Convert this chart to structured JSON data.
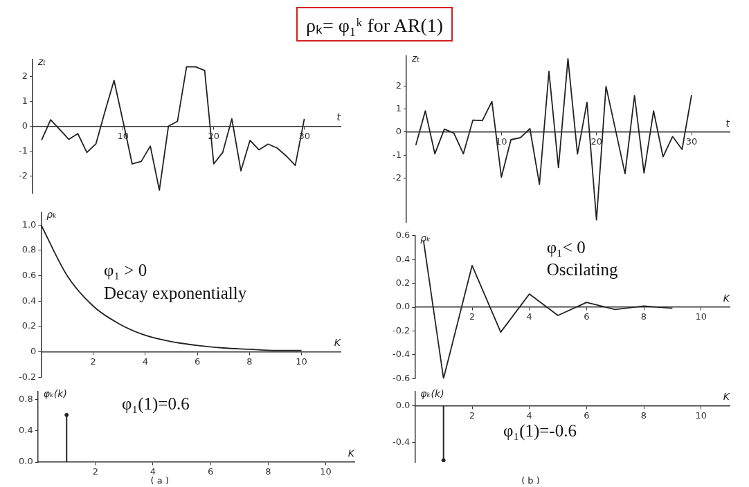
{
  "chart_data": [
    {
      "type": "other",
      "title": "ρₖ= φ₁ᵏ for AR(1)"
    },
    {
      "type": "line",
      "xlabel": "t",
      "ylabel": "zₜ",
      "marker": "none",
      "color": "#222222",
      "x": [
        1,
        2,
        3,
        4,
        5,
        6,
        7,
        8,
        9,
        10,
        11,
        12,
        13,
        14,
        15,
        16,
        17,
        18,
        19,
        20,
        21,
        22,
        23,
        24,
        25,
        26,
        27,
        28,
        29,
        30
      ],
      "values": [
        -0.56,
        0.26,
        -0.13,
        -0.53,
        -0.3,
        -1.06,
        -0.71,
        0.6,
        1.85,
        0.18,
        -1.52,
        -1.42,
        -0.8,
        -2.58,
        0.0,
        0.2,
        2.4,
        2.4,
        2.25,
        -1.52,
        -1.05,
        0.3,
        -1.8,
        -0.57,
        -0.95,
        -0.72,
        -0.88,
        -1.2,
        -1.58,
        0.3
      ],
      "xlim": [
        0,
        34
      ],
      "ylim": [
        -2.7,
        2.7
      ],
      "xticks": [
        10,
        20,
        30
      ],
      "yticks": [
        -2,
        -1,
        0,
        1,
        2
      ],
      "grid": false,
      "legend": false
    },
    {
      "type": "line",
      "xlabel": "t",
      "ylabel": "zₜ",
      "marker": "none",
      "color": "#222222",
      "x": [
        1,
        2,
        3,
        4,
        5,
        6,
        7,
        8,
        9,
        10,
        11,
        12,
        13,
        14,
        15,
        16,
        17,
        18,
        19,
        20,
        21,
        22,
        23,
        24,
        25,
        26,
        27,
        28,
        29,
        30
      ],
      "values": [
        -0.56,
        0.92,
        -0.94,
        0.13,
        -0.04,
        -0.94,
        0.52,
        0.5,
        1.33,
        -1.95,
        -0.33,
        -0.24,
        0.15,
        -2.26,
        2.63,
        -1.54,
        3.18,
        -0.95,
        1.29,
        -3.8,
        1.98,
        0.1,
        -1.8,
        1.58,
        -1.77,
        0.92,
        -1.07,
        -0.19,
        -0.75,
        1.61
      ],
      "xlim": [
        0,
        34
      ],
      "ylim": [
        -3.9,
        3.3
      ],
      "xticks": [
        10,
        20,
        30
      ],
      "yticks": [
        -2,
        -1,
        0,
        1,
        2
      ],
      "grid": false,
      "legend": false
    },
    {
      "type": "line",
      "xlabel": "K",
      "ylabel": "ρₖ",
      "marker": "none",
      "color": "#222222",
      "x": [
        0,
        1,
        2,
        3,
        4,
        5,
        6,
        7,
        8,
        9,
        10
      ],
      "values": [
        1.0,
        0.6,
        0.36,
        0.22,
        0.13,
        0.08,
        0.05,
        0.03,
        0.02,
        0.01,
        0.01
      ],
      "xlim": [
        0,
        11.5
      ],
      "ylim": [
        -0.2,
        1.1
      ],
      "xticks": [
        2,
        4,
        6,
        8,
        10
      ],
      "yticks": [
        {
          "value": -0.2,
          "label": "-0.2"
        },
        {
          "value": 0,
          "label": "0"
        },
        {
          "value": 0.2,
          "label": "0.2"
        },
        {
          "value": 0.4,
          "label": "0.4"
        },
        {
          "value": 0.6,
          "label": "0.6"
        },
        {
          "value": 0.8,
          "label": "0.8"
        },
        {
          "value": 1,
          "label": "1.0"
        }
      ],
      "grid": false,
      "legend": false,
      "annotations": [
        "φ₁ > 0",
        "Decay exponentially"
      ]
    },
    {
      "type": "line",
      "xlabel": "K",
      "ylabel": "ρₖ",
      "marker": "none",
      "color": "#222222",
      "x": [
        0.3,
        1,
        2,
        3,
        4,
        5,
        6,
        7,
        8,
        9
      ],
      "values": [
        0.56,
        -0.6,
        0.35,
        -0.21,
        0.11,
        -0.07,
        0.04,
        -0.02,
        0.01,
        -0.01
      ],
      "xlim": [
        0,
        11
      ],
      "ylim": [
        -0.6,
        0.6
      ],
      "xticks": [
        2,
        4,
        6,
        8,
        10
      ],
      "yticks": [
        {
          "value": -0.6,
          "label": "-0.6"
        },
        {
          "value": -0.4,
          "label": "-0.4"
        },
        {
          "value": -0.2,
          "label": "-0.2"
        },
        {
          "value": 0,
          "label": "0.0"
        },
        {
          "value": 0.2,
          "label": "0.2"
        },
        {
          "value": 0.4,
          "label": "0.4"
        },
        {
          "value": 0.6,
          "label": "0.6"
        }
      ],
      "grid": false,
      "legend": false,
      "annotations": [
        "φ₁< 0",
        "Oscilating"
      ]
    },
    {
      "type": "lollipop",
      "xlabel": "K",
      "ylabel": "φₖ(k)",
      "marker": "circle",
      "color": "#222222",
      "x": [
        1
      ],
      "values": [
        0.6
      ],
      "xlim": [
        0,
        11
      ],
      "ylim": [
        0,
        0.9
      ],
      "xticks": [
        2,
        4,
        6,
        8,
        10
      ],
      "yticks": [
        {
          "value": 0,
          "label": "0.0"
        },
        {
          "value": 0.4,
          "label": "0.4"
        },
        {
          "value": 0.8,
          "label": "0.8"
        }
      ],
      "grid": false,
      "legend": false,
      "annotations": [
        "φ₁(1)=0.6",
        "( a )"
      ]
    },
    {
      "type": "lollipop",
      "xlabel": "K",
      "ylabel": "φₖ(k)",
      "marker": "circle",
      "color": "#222222",
      "x": [
        1
      ],
      "values": [
        -0.6
      ],
      "xlim": [
        0,
        11
      ],
      "ylim": [
        -0.62,
        0.16
      ],
      "xticks": [
        2,
        4,
        6,
        8,
        10
      ],
      "yticks": [
        {
          "value": -0.4,
          "label": "-0.4"
        },
        {
          "value": 0,
          "label": "0.0"
        }
      ],
      "grid": false,
      "legend": false,
      "annotations": [
        "φ₁(1)=-0.6",
        "( b )"
      ]
    }
  ]
}
